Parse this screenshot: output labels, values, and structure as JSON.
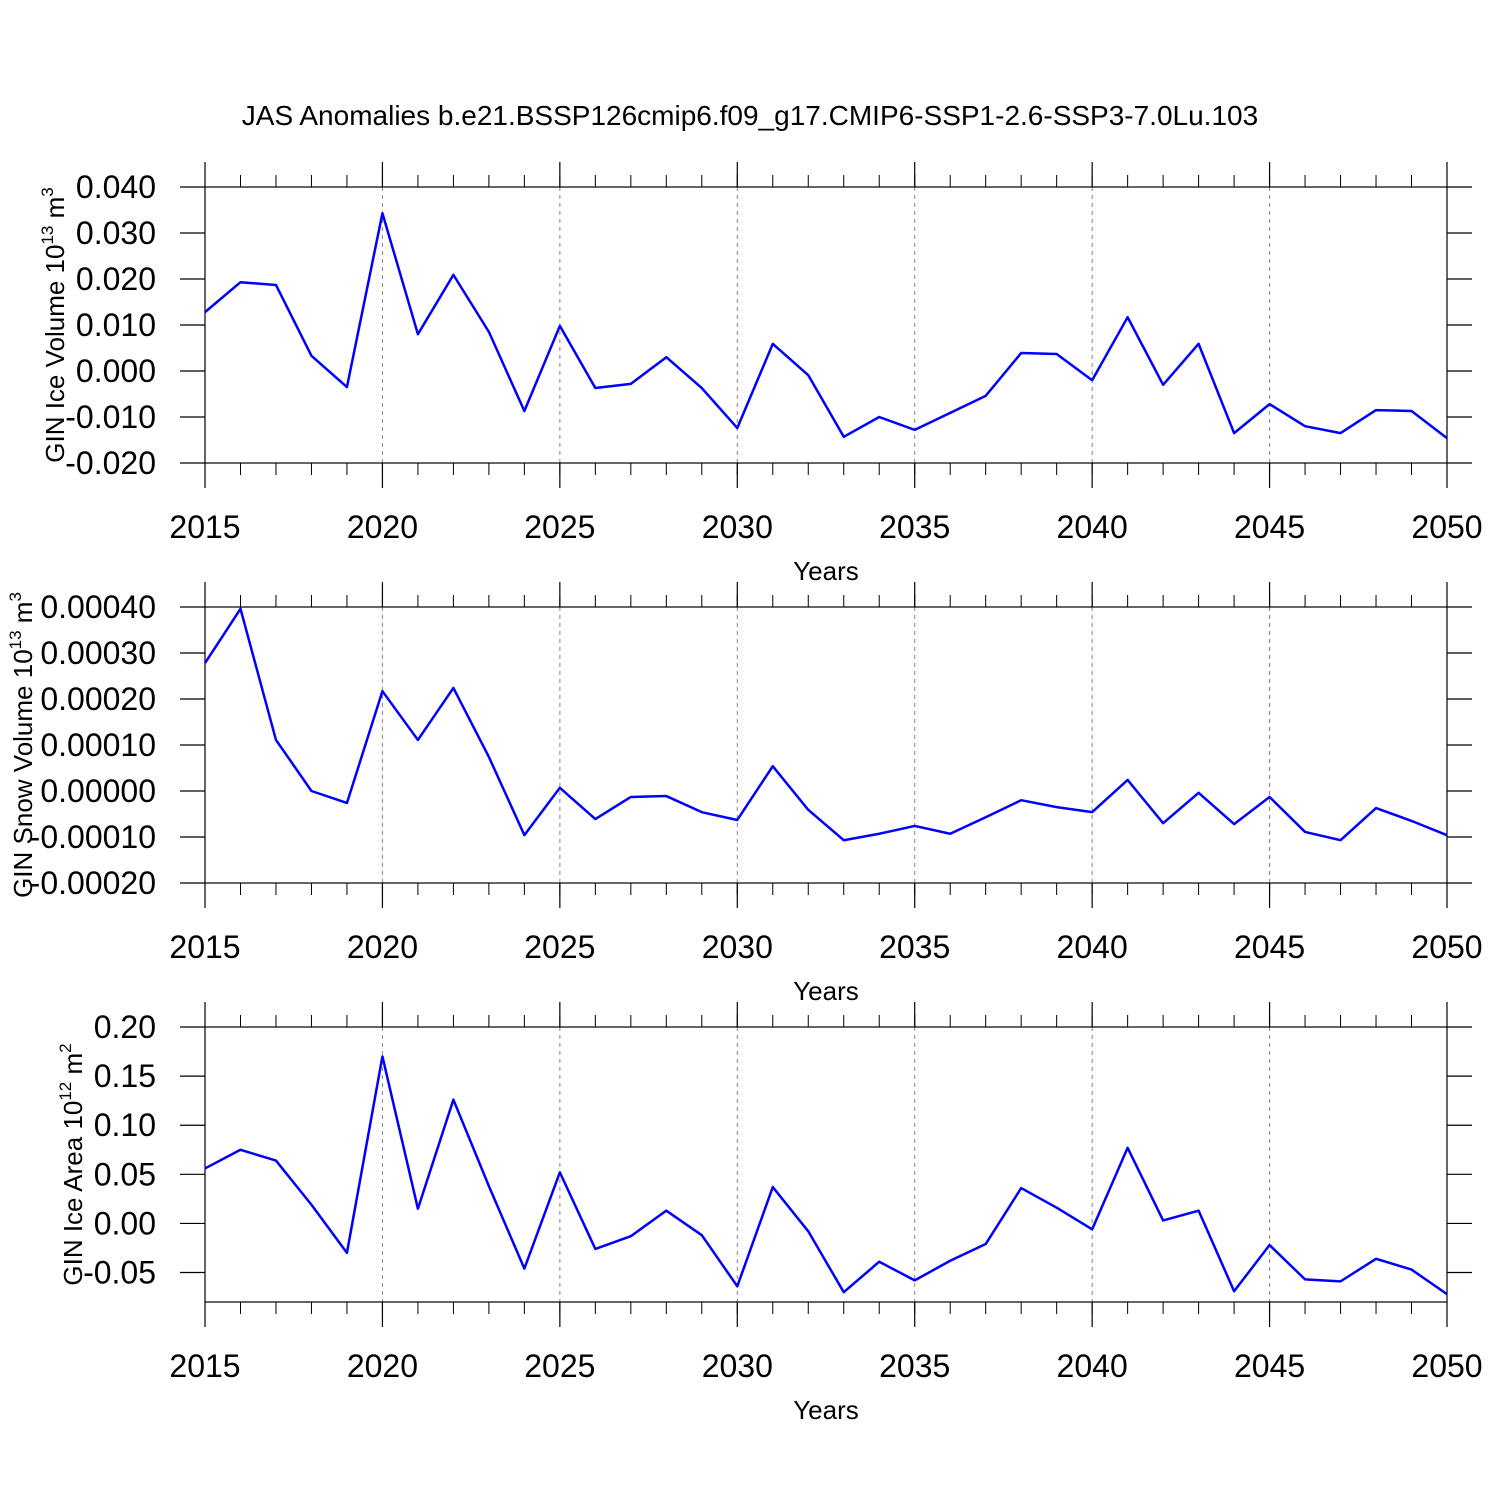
{
  "chart_data": [
    {
      "type": "line",
      "title": "JAS Anomalies b.e21.BSSP126cmip6.f09_g17.CMIP6-SSP1-2.6-SSP3-7.0Lu.103",
      "ylabel": [
        "GIN Ice Volume 10",
        "13",
        " m",
        "3"
      ],
      "xlabel": "Years",
      "x": [
        2015,
        2016,
        2017,
        2018,
        2019,
        2020,
        2021,
        2022,
        2023,
        2024,
        2025,
        2026,
        2027,
        2028,
        2029,
        2030,
        2031,
        2032,
        2033,
        2034,
        2035,
        2036,
        2037,
        2038,
        2039,
        2040,
        2041,
        2042,
        2043,
        2044,
        2045,
        2046,
        2047,
        2048,
        2049,
        2050
      ],
      "series": [
        {
          "color": "#0000ff",
          "values": [
            0.0128,
            0.0193,
            0.0187,
            0.0033,
            -0.0035,
            0.0343,
            0.008,
            0.0209,
            0.0085,
            -0.0087,
            0.0098,
            -0.0037,
            -0.0028,
            0.003,
            -0.0037,
            -0.0124,
            0.0059,
            -0.0009,
            -0.0143,
            -0.01,
            -0.0128,
            -0.0091,
            -0.0054,
            0.0039,
            0.0037,
            -0.002,
            0.0117,
            -0.003,
            0.0059,
            -0.0135,
            -0.0072,
            -0.012,
            -0.0135,
            -0.0085,
            -0.0087,
            -0.0146
          ]
        }
      ],
      "xlim": [
        2015,
        2050
      ],
      "xticks": [
        2015,
        2020,
        2025,
        2030,
        2035,
        2040,
        2045,
        2050
      ],
      "ylim": [
        -0.02,
        0.04
      ],
      "yticks": [
        {
          "value": 0.04,
          "label": "0.040"
        },
        {
          "value": 0.03,
          "label": "0.030"
        },
        {
          "value": 0.02,
          "label": "0.020"
        },
        {
          "value": 0.01,
          "label": "0.010"
        },
        {
          "value": 0,
          "label": "0.000"
        },
        {
          "value": -0.01,
          "label": "-0.010"
        },
        {
          "value": -0.02,
          "label": "-0.020"
        }
      ],
      "xgrid": true
    },
    {
      "type": "line",
      "ylabel": [
        "GIN Snow Volume 10",
        "13",
        " m",
        "3"
      ],
      "xlabel": "Years",
      "x": [
        2015,
        2016,
        2017,
        2018,
        2019,
        2020,
        2021,
        2022,
        2023,
        2024,
        2025,
        2026,
        2027,
        2028,
        2029,
        2030,
        2031,
        2032,
        2033,
        2034,
        2035,
        2036,
        2037,
        2038,
        2039,
        2040,
        2041,
        2042,
        2043,
        2044,
        2045,
        2046,
        2047,
        2048,
        2049,
        2050
      ],
      "series": [
        {
          "color": "#0000ff",
          "values": [
            0.000278,
            0.000396,
            0.000111,
            0.0,
            -2.6e-05,
            0.000217,
            0.000111,
            0.000224,
            7.4e-05,
            -9.6e-05,
            7e-06,
            -6.1e-05,
            -1.3e-05,
            -1.1e-05,
            -4.6e-05,
            -6.3e-05,
            5.4e-05,
            -4.1e-05,
            -0.000107,
            -9.3e-05,
            -7.6e-05,
            -9.3e-05,
            -5.7e-05,
            -2e-05,
            -3.5e-05,
            -4.6e-05,
            2.4e-05,
            -7e-05,
            -4e-06,
            -7.2e-05,
            -1.3e-05,
            -8.9e-05,
            -0.000107,
            -3.7e-05,
            -6.5e-05,
            -9.6e-05
          ]
        }
      ],
      "xlim": [
        2015,
        2050
      ],
      "xticks": [
        2015,
        2020,
        2025,
        2030,
        2035,
        2040,
        2045,
        2050
      ],
      "ylim": [
        -0.0002,
        0.0004
      ],
      "yticks": [
        {
          "value": 0.0004,
          "label": "0.00040"
        },
        {
          "value": 0.0003,
          "label": "0.00030"
        },
        {
          "value": 0.0002,
          "label": "0.00020"
        },
        {
          "value": 0.0001,
          "label": "0.00010"
        },
        {
          "value": 0,
          "label": "0.00000"
        },
        {
          "value": -0.0001,
          "label": "-0.00010"
        },
        {
          "value": -0.0002,
          "label": "-0.00020"
        }
      ],
      "xgrid": true
    },
    {
      "type": "line",
      "ylabel": [
        "GIN Ice Area 10",
        "12",
        " m",
        "2"
      ],
      "xlabel": "Years",
      "x": [
        2015,
        2016,
        2017,
        2018,
        2019,
        2020,
        2021,
        2022,
        2023,
        2024,
        2025,
        2026,
        2027,
        2028,
        2029,
        2030,
        2031,
        2032,
        2033,
        2034,
        2035,
        2036,
        2037,
        2038,
        2039,
        2040,
        2041,
        2042,
        2043,
        2044,
        2045,
        2046,
        2047,
        2048,
        2049,
        2050
      ],
      "series": [
        {
          "color": "#0000ff",
          "values": [
            0.056,
            0.075,
            0.064,
            0.019,
            -0.03,
            0.17,
            0.015,
            0.126,
            0.038,
            -0.046,
            0.052,
            -0.026,
            -0.013,
            0.013,
            -0.012,
            -0.064,
            0.037,
            -0.008,
            -0.07,
            -0.039,
            -0.058,
            -0.038,
            -0.021,
            0.036,
            0.016,
            -0.006,
            0.077,
            0.003,
            0.013,
            -0.069,
            -0.022,
            -0.057,
            -0.059,
            -0.036,
            -0.047,
            -0.072
          ]
        }
      ],
      "xlim": [
        2015,
        2050
      ],
      "xticks": [
        2015,
        2020,
        2025,
        2030,
        2035,
        2040,
        2045,
        2050
      ],
      "ylim": [
        -0.08,
        0.2
      ],
      "yticks": [
        {
          "value": 0.2,
          "label": "0.20"
        },
        {
          "value": 0.15,
          "label": "0.15"
        },
        {
          "value": 0.1,
          "label": "0.10"
        },
        {
          "value": 0.05,
          "label": "0.05"
        },
        {
          "value": 0,
          "label": "0.00"
        },
        {
          "value": -0.05,
          "label": "-0.05"
        }
      ],
      "xgrid": true
    }
  ]
}
